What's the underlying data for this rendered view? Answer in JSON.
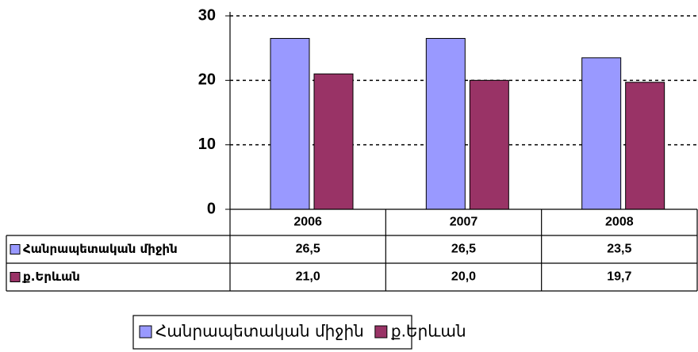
{
  "chart_data": {
    "type": "bar",
    "categories": [
      "2006",
      "2007",
      "2008"
    ],
    "series": [
      {
        "name": "Հանրապետական միջին",
        "color": "#9999ff",
        "values": [
          26.5,
          26.5,
          23.5
        ],
        "value_labels": [
          "26,5",
          "26,5",
          "23,5"
        ]
      },
      {
        "name": "ք.Երևան",
        "color": "#993366",
        "values": [
          21.0,
          20.0,
          19.7
        ],
        "value_labels": [
          "21,0",
          "20,0",
          "19,7"
        ]
      }
    ],
    "ylim": [
      0,
      30
    ],
    "yticks": [
      0,
      10,
      20,
      30
    ],
    "grid": true,
    "legend": "bottom"
  }
}
